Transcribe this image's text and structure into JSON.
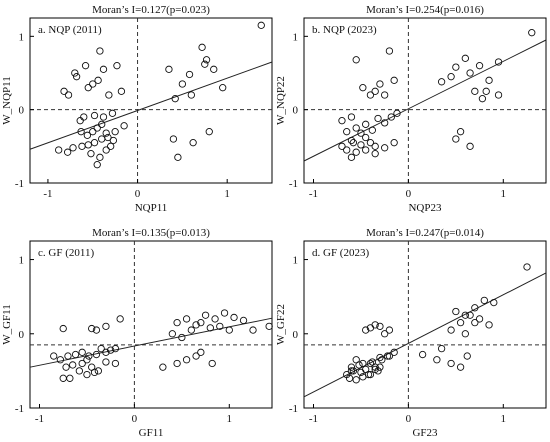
{
  "chart_data": [
    {
      "type": "scatter",
      "title": "Moran’s I=0.127(p=0.023)",
      "subtitle": "a. NQP (2011)",
      "xlabel": "NQP11",
      "ylabel": "W_NQP11",
      "xlim": [
        -1.2,
        1.5
      ],
      "ylim": [
        -1,
        1.25
      ],
      "xticks": [
        -1,
        0,
        1
      ],
      "yticks": [
        -1,
        0,
        1
      ],
      "mean_lines": {
        "x": 0,
        "y": 0
      },
      "fit_line": {
        "x": [
          -1.2,
          1.5
        ],
        "y": [
          -0.54,
          0.65
        ]
      },
      "points": {
        "x": [
          -0.58,
          -0.42,
          -0.7,
          -0.82,
          -0.77,
          -0.68,
          -0.55,
          -0.5,
          -0.44,
          -0.38,
          -0.32,
          -0.23,
          -0.18,
          -0.6,
          -0.64,
          -0.48,
          -0.38,
          -0.28,
          -0.63,
          -0.56,
          -0.5,
          -0.45,
          -0.4,
          -0.35,
          -0.88,
          -0.78,
          -0.72,
          -0.62,
          -0.55,
          -0.48,
          -0.4,
          -0.33,
          -0.27,
          -0.52,
          -0.42,
          -0.35,
          -0.3,
          -0.25,
          -0.15,
          -0.45,
          0.42,
          0.58,
          0.72,
          0.77,
          0.85,
          0.95,
          1.38,
          0.35,
          0.5,
          0.6,
          0.75,
          0.4,
          0.45,
          0.62,
          0.8
        ],
        "y": [
          0.6,
          0.8,
          0.5,
          0.25,
          0.2,
          0.45,
          0.3,
          0.35,
          0.4,
          0.55,
          0.2,
          0.6,
          0.25,
          -0.1,
          -0.15,
          -0.08,
          -0.1,
          -0.05,
          -0.3,
          -0.35,
          -0.3,
          -0.25,
          -0.2,
          -0.32,
          -0.55,
          -0.58,
          -0.52,
          -0.5,
          -0.48,
          -0.45,
          -0.4,
          -0.38,
          -0.42,
          -0.6,
          -0.65,
          -0.55,
          -0.5,
          -0.3,
          -0.22,
          -0.75,
          0.15,
          0.48,
          0.85,
          0.68,
          0.55,
          0.3,
          1.15,
          0.55,
          0.35,
          0.2,
          0.62,
          -0.4,
          -0.65,
          -0.45,
          -0.3
        ]
      }
    },
    {
      "type": "scatter",
      "title": "Moran’s I=0.254(p=0.016)",
      "subtitle": "b. NQP (2023)",
      "xlabel": "NQP23",
      "ylabel": "W_NQP22",
      "xlim": [
        -1.1,
        1.45
      ],
      "ylim": [
        -1,
        1.25
      ],
      "xticks": [
        -1,
        0,
        1
      ],
      "yticks": [
        -1,
        0,
        1
      ],
      "mean_lines": {
        "x": 0,
        "y": 0
      },
      "fit_line": {
        "x": [
          -1.1,
          1.45
        ],
        "y": [
          -0.7,
          0.95
        ]
      },
      "points": {
        "x": [
          -0.55,
          -0.48,
          -0.35,
          -0.25,
          -0.2,
          -0.15,
          -0.4,
          -0.3,
          -0.6,
          -0.7,
          -0.65,
          -0.55,
          -0.5,
          -0.45,
          -0.38,
          -0.32,
          -0.25,
          -0.18,
          -0.12,
          -0.6,
          -0.58,
          -0.5,
          -0.45,
          -0.4,
          -0.35,
          -0.7,
          -0.65,
          -0.55,
          -0.45,
          -0.35,
          -0.25,
          -0.15,
          -0.6,
          0.5,
          0.65,
          0.75,
          0.95,
          0.85,
          0.6,
          0.78,
          1.3,
          0.45,
          0.35,
          0.7,
          0.82,
          0.95,
          0.55,
          0.5,
          0.65
        ],
        "y": [
          0.68,
          0.3,
          0.25,
          0.2,
          0.8,
          0.4,
          0.2,
          0.35,
          -0.1,
          -0.15,
          -0.3,
          -0.25,
          -0.32,
          -0.2,
          -0.28,
          -0.12,
          -0.18,
          -0.1,
          -0.05,
          -0.42,
          -0.45,
          -0.48,
          -0.38,
          -0.45,
          -0.5,
          -0.5,
          -0.55,
          -0.58,
          -0.55,
          -0.6,
          -0.52,
          -0.45,
          -0.65,
          0.58,
          0.5,
          0.6,
          0.65,
          0.4,
          0.7,
          0.15,
          1.05,
          0.45,
          0.38,
          0.25,
          0.25,
          0.2,
          -0.3,
          -0.4,
          -0.5
        ]
      }
    },
    {
      "type": "scatter",
      "title": "Moran’s I=0.135(p=0.013)",
      "subtitle": "c. GF (2011)",
      "xlabel": "GF11",
      "ylabel": "W_GF11",
      "xlim": [
        -1.1,
        1.45
      ],
      "ylim": [
        -1,
        1.25
      ],
      "xticks": [
        -1,
        0,
        1
      ],
      "yticks": [
        -1,
        0,
        1
      ],
      "mean_lines": {
        "x": 0,
        "y": -0.15
      },
      "fit_line": {
        "x": [
          -1.1,
          1.45
        ],
        "y": [
          -0.45,
          0.21
        ]
      },
      "points": {
        "x": [
          -0.75,
          -0.4,
          -0.3,
          -0.15,
          -0.45,
          -0.3,
          -0.2,
          -0.85,
          -0.78,
          -0.7,
          -0.62,
          -0.55,
          -0.48,
          -0.4,
          -0.35,
          -0.25,
          -0.72,
          -0.65,
          -0.55,
          -0.45,
          -0.38,
          -0.3,
          -0.5,
          -0.42,
          -0.58,
          -0.68,
          -0.2,
          -0.75,
          -0.5,
          0.45,
          0.55,
          0.65,
          0.75,
          0.85,
          0.95,
          1.05,
          1.15,
          1.25,
          1.42,
          0.4,
          0.5,
          0.6,
          0.7,
          0.8,
          0.9,
          1.0,
          0.65,
          0.55,
          0.3,
          0.45,
          0.7,
          0.82
        ],
        "y": [
          0.07,
          0.05,
          0.1,
          0.2,
          0.07,
          -0.25,
          -0.2,
          -0.3,
          -0.35,
          -0.3,
          -0.28,
          -0.25,
          -0.3,
          -0.28,
          -0.2,
          -0.22,
          -0.45,
          -0.42,
          -0.4,
          -0.45,
          -0.5,
          -0.38,
          -0.55,
          -0.52,
          -0.5,
          -0.6,
          -0.4,
          -0.6,
          -0.35,
          0.15,
          0.2,
          0.12,
          0.25,
          0.2,
          0.28,
          0.22,
          0.18,
          0.05,
          0.1,
          0.0,
          -0.05,
          0.05,
          0.15,
          0.08,
          0.1,
          0.05,
          -0.3,
          -0.35,
          -0.45,
          -0.4,
          -0.25,
          -0.4
        ]
      }
    },
    {
      "type": "scatter",
      "title": "Moran’s I=0.247(p=0.014)",
      "subtitle": "d. GF (2023)",
      "xlabel": "GF23",
      "ylabel": "W_GF22",
      "xlim": [
        -1.1,
        1.45
      ],
      "ylim": [
        -1,
        1.25
      ],
      "xticks": [
        -1,
        0,
        1
      ],
      "yticks": [
        -1,
        0,
        1
      ],
      "mean_lines": {
        "x": 0,
        "y": -0.15
      },
      "fit_line": {
        "x": [
          -1.1,
          1.45
        ],
        "y": [
          -0.85,
          0.82
        ]
      },
      "points": {
        "x": [
          -0.4,
          -0.3,
          -0.2,
          -0.35,
          -0.25,
          -0.45,
          -0.55,
          -0.48,
          -0.38,
          -0.3,
          -0.22,
          -0.15,
          -0.6,
          -0.52,
          -0.45,
          -0.4,
          -0.35,
          -0.28,
          -0.2,
          -0.65,
          -0.58,
          -0.5,
          -0.42,
          -0.35,
          -0.3,
          -0.62,
          -0.55,
          -0.48,
          -0.4,
          -0.32,
          -0.6,
          0.5,
          0.6,
          0.7,
          0.8,
          0.9,
          1.25,
          0.55,
          0.65,
          0.75,
          0.85,
          0.45,
          0.6,
          0.7,
          0.45,
          0.55,
          0.3,
          0.15,
          0.35,
          0.62
        ],
        "y": [
          0.08,
          0.1,
          0.05,
          0.12,
          0.0,
          0.05,
          -0.35,
          -0.4,
          -0.38,
          -0.32,
          -0.3,
          -0.25,
          -0.45,
          -0.42,
          -0.48,
          -0.4,
          -0.45,
          -0.35,
          -0.3,
          -0.55,
          -0.5,
          -0.52,
          -0.55,
          -0.48,
          -0.45,
          -0.6,
          -0.62,
          -0.58,
          -0.55,
          -0.5,
          -0.5,
          0.3,
          0.25,
          0.35,
          0.45,
          0.42,
          0.9,
          0.15,
          0.25,
          0.2,
          0.12,
          0.05,
          0.0,
          0.15,
          -0.4,
          -0.45,
          -0.35,
          -0.28,
          -0.2,
          -0.3
        ]
      }
    }
  ]
}
